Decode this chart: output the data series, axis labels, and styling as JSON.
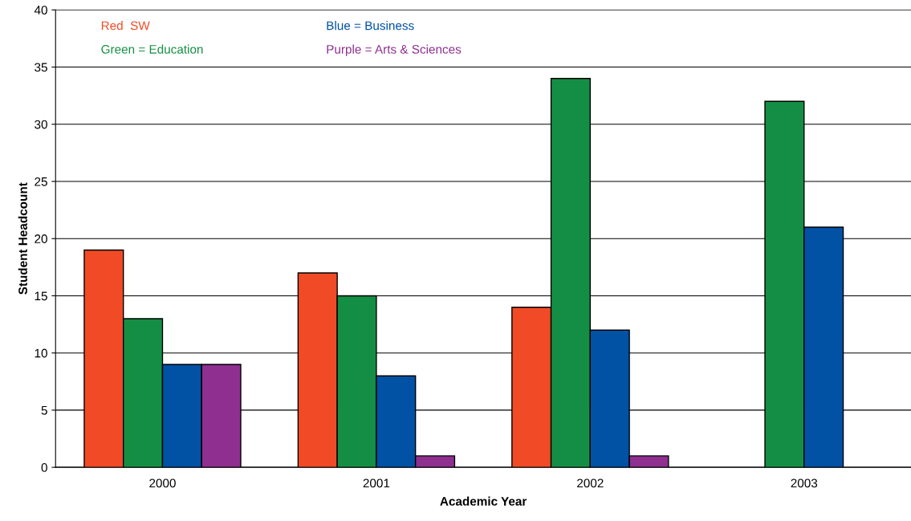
{
  "chart_data": {
    "type": "bar",
    "xlabel": "Academic Year",
    "ylabel": "Student Headcount",
    "categories": [
      "2000",
      "2001",
      "2002",
      "2003"
    ],
    "series": [
      {
        "name": "Red  SW",
        "color": "#f04b26",
        "values": [
          19,
          17,
          14,
          null
        ]
      },
      {
        "name": "Green = Education",
        "color": "#158e45",
        "values": [
          13,
          15,
          34,
          32
        ]
      },
      {
        "name": "Blue = Business",
        "color": "#0151a5",
        "values": [
          9,
          8,
          12,
          21
        ]
      },
      {
        "name": "Purple = Arts & Sciences",
        "color": "#8f2f8f",
        "values": [
          9,
          1,
          1,
          null
        ]
      }
    ],
    "ylim": [
      0,
      40
    ],
    "yticks": [
      0,
      5,
      10,
      15,
      20,
      25,
      30,
      35,
      40
    ],
    "grid": "y",
    "legend": "top left"
  }
}
